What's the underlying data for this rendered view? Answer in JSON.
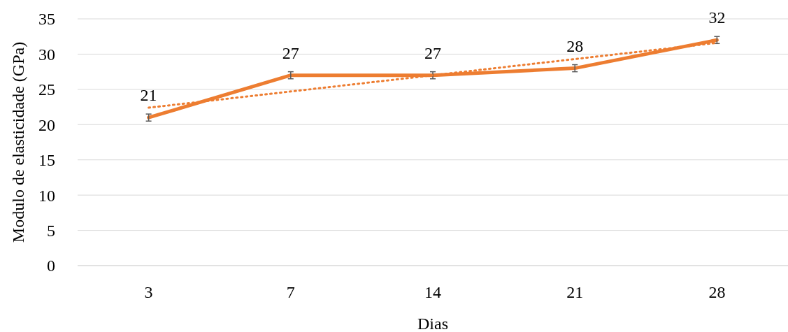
{
  "chart_data": {
    "type": "line",
    "xlabel": "Dias",
    "ylabel": "Modulo de elasticidade (GPa)",
    "categories": [
      "3",
      "7",
      "14",
      "21",
      "28"
    ],
    "series": [
      {
        "color": "#ed7d31",
        "values": [
          21,
          27,
          27,
          28,
          32
        ],
        "errors": [
          0.5,
          0.5,
          0.5,
          0.5,
          0.5
        ],
        "value_labels": [
          "21",
          "27",
          "27",
          "28",
          "32"
        ],
        "line_style": "solid"
      },
      {
        "type": "line",
        "color": "#ed7d31",
        "x": [
          "3",
          "28"
        ],
        "values": [
          22.4,
          31.6
        ],
        "line_style": "dotted"
      }
    ],
    "ylim": [
      0,
      35
    ],
    "yticks": [
      0,
      5,
      10,
      15,
      20,
      25,
      30,
      35
    ],
    "grid": "y",
    "marker": "none"
  }
}
